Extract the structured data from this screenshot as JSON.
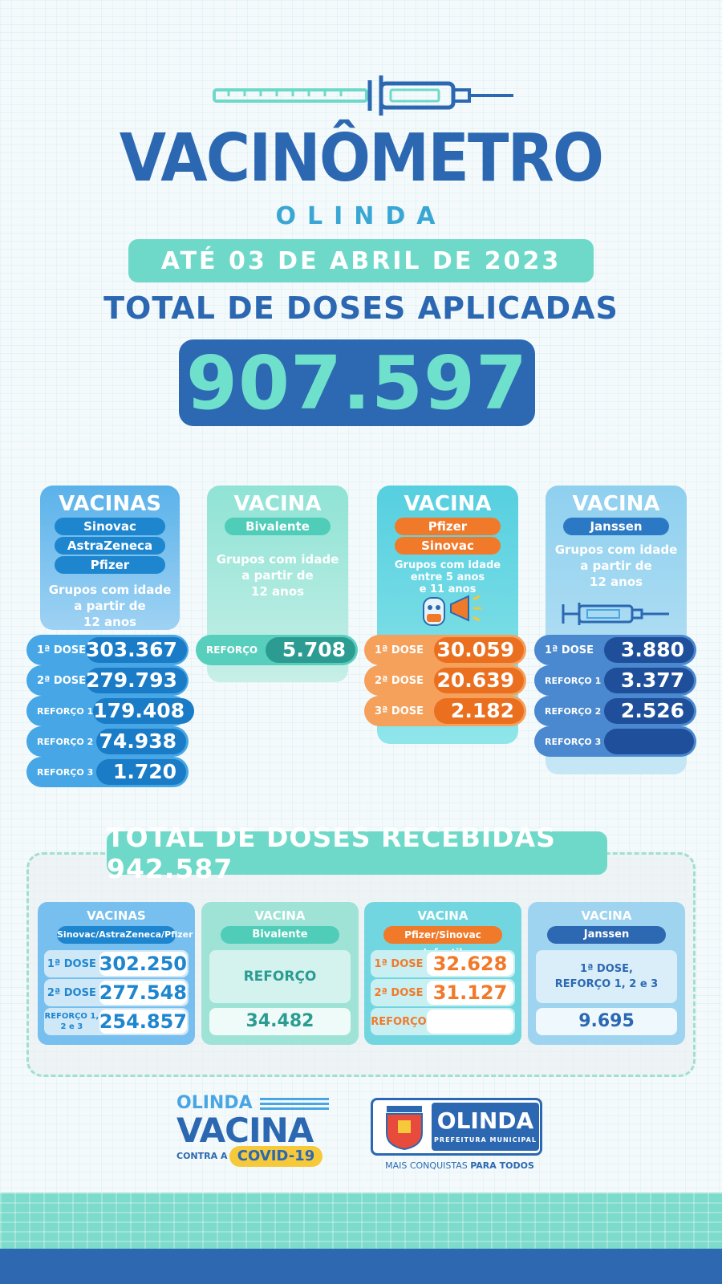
{
  "header": {
    "title": "VACINÔMETRO",
    "subtitle": "OLINDA",
    "date": "ATÉ  03 DE  ABRIL DE 2023",
    "doses_heading": "TOTAL  DE DOSES APLICADAS",
    "total_applied": "907.597"
  },
  "columns": [
    {
      "title": "VACINAS",
      "pills": [
        "Sinovac",
        "AstraZeneca",
        "Pfizer"
      ],
      "group_lines": [
        "Grupos com idade",
        "a partir de",
        "12 anos"
      ],
      "rows": [
        {
          "label": "1ª DOSE",
          "value": "303.367"
        },
        {
          "label": "2ª DOSE",
          "value": "279.793"
        },
        {
          "label": "REFORÇO 1",
          "value": "179.408"
        },
        {
          "label": "REFORÇO 2",
          "value": "74.938"
        },
        {
          "label": "REFORÇO 3",
          "value": "1.720"
        }
      ]
    },
    {
      "title": "VACINA",
      "pills": [
        "Bivalente"
      ],
      "group_lines": [
        "Grupos com idade",
        "a partir de",
        "12 anos"
      ],
      "rows": [
        {
          "label": "REFORÇO",
          "value": "5.708"
        }
      ]
    },
    {
      "title": "VACINA",
      "pills": [
        "Pfizer",
        "Sinovac"
      ],
      "group_lines": [
        "Grupos com idade",
        "entre 5 anos",
        "e 11 anos"
      ],
      "rows": [
        {
          "label": "1ª DOSE",
          "value": "30.059"
        },
        {
          "label": "2ª DOSE",
          "value": "20.639"
        },
        {
          "label": "3ª DOSE",
          "value": "2.182"
        }
      ]
    },
    {
      "title": "VACINA",
      "pills": [
        "Janssen"
      ],
      "group_lines": [
        "Grupos com idade",
        "a partir de",
        "12 anos"
      ],
      "rows": [
        {
          "label": "1ª DOSE",
          "value": "3.880"
        },
        {
          "label": "REFORÇO 1",
          "value": "3.377"
        },
        {
          "label": "REFORÇO 2",
          "value": "2.526"
        },
        {
          "label": "REFORÇO 3",
          "value": ""
        }
      ]
    }
  ],
  "received": {
    "heading": "TOTAL  DE  DOSES  RECEBIDAS 942.587",
    "cards": [
      {
        "title": "VACINAS",
        "pill": "Sinovac/AstraZeneca/Pfizer",
        "rows": [
          {
            "label": "1ª DOSE",
            "value": "302.250"
          },
          {
            "label": "2ª DOSE",
            "value": "277.548"
          },
          {
            "label": "REFORÇO 1, 2 e 3",
            "value": "254.857"
          }
        ]
      },
      {
        "title": "VACINA",
        "pill": "Bivalente",
        "label": "REFORÇO",
        "value": "34.482"
      },
      {
        "title": "VACINA",
        "pill": "Pfizer/Sinovac Infantil",
        "rows": [
          {
            "label": "1ª DOSE",
            "value": "32.628"
          },
          {
            "label": "2ª DOSE",
            "value": "31.127"
          },
          {
            "label": "REFORÇO",
            "value": ""
          }
        ]
      },
      {
        "title": "VACINA",
        "pill": "Janssen",
        "label_lines": [
          "1ª DOSE,",
          "REFORÇO 1, 2 e 3"
        ],
        "value": "9.695"
      }
    ]
  },
  "footer": {
    "campaign_top": "OLINDA",
    "campaign_main": "VACINA",
    "campaign_small": "CONTRA A",
    "campaign_badge": "COVID-19",
    "city_name": "OLINDA",
    "city_sub": "PREFEITURA MUNICIPAL",
    "slogan_start": "MAIS CONQUISTAS ",
    "slogan_bold": "PARA TODOS"
  },
  "colors": {
    "blue": "#2c68b2",
    "mint": "#6fd9c9",
    "orange": "#f07a2a",
    "light_blue": "#4aa5e3",
    "cyan": "#7fe0e3"
  }
}
